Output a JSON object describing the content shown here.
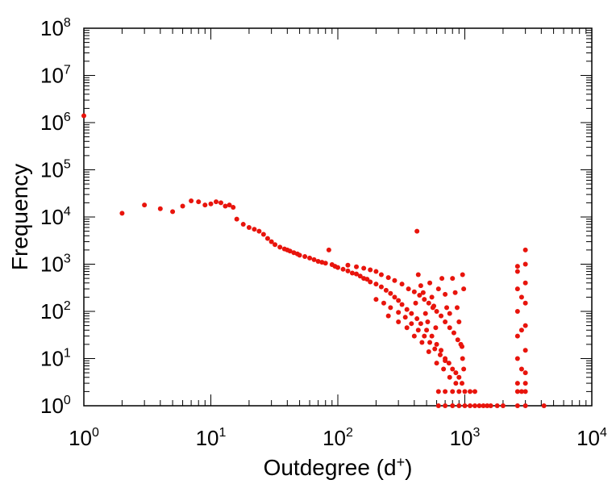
{
  "chart_data": {
    "type": "scatter",
    "title": "",
    "xlabel": "Outdegree (d",
    "xlabel_sup": "+",
    "xlabel_close": ")",
    "ylabel": "Frequency",
    "xscale": "log",
    "yscale": "log",
    "xlim": [
      1,
      10000
    ],
    "ylim": [
      1,
      100000000
    ],
    "x_ticks": [
      {
        "base": "10",
        "exp": "0"
      },
      {
        "base": "10",
        "exp": "1"
      },
      {
        "base": "10",
        "exp": "2"
      },
      {
        "base": "10",
        "exp": "3"
      },
      {
        "base": "10",
        "exp": "4"
      }
    ],
    "y_ticks": [
      {
        "base": "10",
        "exp": "0"
      },
      {
        "base": "10",
        "exp": "1"
      },
      {
        "base": "10",
        "exp": "2"
      },
      {
        "base": "10",
        "exp": "3"
      },
      {
        "base": "10",
        "exp": "4"
      },
      {
        "base": "10",
        "exp": "5"
      },
      {
        "base": "10",
        "exp": "6"
      },
      {
        "base": "10",
        "exp": "7"
      },
      {
        "base": "10",
        "exp": "8"
      }
    ],
    "marker_color": "#e8140c",
    "grid": false,
    "points": [
      [
        1,
        1400000
      ],
      [
        2,
        12000
      ],
      [
        3,
        18000
      ],
      [
        4,
        15000
      ],
      [
        5,
        13000
      ],
      [
        6,
        17000
      ],
      [
        7,
        22000
      ],
      [
        8,
        21000
      ],
      [
        9,
        18000
      ],
      [
        10,
        19000
      ],
      [
        11,
        21000
      ],
      [
        12,
        20000
      ],
      [
        13,
        17000
      ],
      [
        14,
        18000
      ],
      [
        15,
        16000
      ],
      [
        16,
        9000
      ],
      [
        18,
        7000
      ],
      [
        20,
        6000
      ],
      [
        22,
        5500
      ],
      [
        24,
        5000
      ],
      [
        26,
        4300
      ],
      [
        28,
        3500
      ],
      [
        30,
        3000
      ],
      [
        32,
        2600
      ],
      [
        35,
        2300
      ],
      [
        38,
        2100
      ],
      [
        40,
        2000
      ],
      [
        42,
        1900
      ],
      [
        45,
        1750
      ],
      [
        48,
        1650
      ],
      [
        50,
        1550
      ],
      [
        55,
        1450
      ],
      [
        60,
        1350
      ],
      [
        65,
        1250
      ],
      [
        70,
        1150
      ],
      [
        75,
        1100
      ],
      [
        80,
        1050
      ],
      [
        85,
        2000
      ],
      [
        90,
        980
      ],
      [
        95,
        900
      ],
      [
        100,
        850
      ],
      [
        110,
        780
      ],
      [
        120,
        720
      ],
      [
        130,
        650
      ],
      [
        140,
        620
      ],
      [
        150,
        560
      ],
      [
        160,
        500
      ],
      [
        170,
        480
      ],
      [
        180,
        420
      ],
      [
        200,
        380
      ],
      [
        220,
        330
      ],
      [
        240,
        280
      ],
      [
        260,
        240
      ],
      [
        280,
        200
      ],
      [
        300,
        170
      ],
      [
        320,
        140
      ],
      [
        350,
        110
      ],
      [
        380,
        90
      ],
      [
        420,
        5000
      ],
      [
        420,
        70
      ],
      [
        450,
        55
      ],
      [
        500,
        40
      ],
      [
        550,
        30
      ],
      [
        600,
        20
      ],
      [
        650,
        15
      ],
      [
        700,
        10
      ],
      [
        750,
        8
      ],
      [
        800,
        6
      ],
      [
        850,
        5
      ],
      [
        900,
        4
      ],
      [
        950,
        3
      ],
      [
        120,
        950
      ],
      [
        140,
        880
      ],
      [
        160,
        820
      ],
      [
        180,
        760
      ],
      [
        200,
        700
      ],
      [
        220,
        600
      ],
      [
        250,
        520
      ],
      [
        280,
        450
      ],
      [
        320,
        380
      ],
      [
        360,
        300
      ],
      [
        400,
        260
      ],
      [
        440,
        220
      ],
      [
        480,
        180
      ],
      [
        520,
        150
      ],
      [
        560,
        120
      ],
      [
        600,
        100
      ],
      [
        650,
        80
      ],
      [
        700,
        60
      ],
      [
        760,
        45
      ],
      [
        820,
        35
      ],
      [
        880,
        25
      ],
      [
        950,
        18
      ],
      [
        200,
        180
      ],
      [
        230,
        150
      ],
      [
        260,
        120
      ],
      [
        300,
        95
      ],
      [
        340,
        75
      ],
      [
        380,
        55
      ],
      [
        430,
        40
      ],
      [
        480,
        30
      ],
      [
        530,
        22
      ],
      [
        580,
        16
      ],
      [
        640,
        12
      ],
      [
        700,
        9
      ],
      [
        250,
        80
      ],
      [
        300,
        60
      ],
      [
        350,
        45
      ],
      [
        400,
        30
      ],
      [
        460,
        22
      ],
      [
        520,
        14
      ],
      [
        600,
        8
      ],
      [
        680,
        6
      ],
      [
        760,
        4
      ],
      [
        850,
        3
      ],
      [
        410,
        150
      ],
      [
        430,
        600
      ],
      [
        450,
        350
      ],
      [
        470,
        250
      ],
      [
        490,
        90
      ],
      [
        510,
        60
      ],
      [
        530,
        400
      ],
      [
        550,
        200
      ],
      [
        570,
        130
      ],
      [
        590,
        45
      ],
      [
        620,
        300
      ],
      [
        660,
        500
      ],
      [
        700,
        230
      ],
      [
        720,
        120
      ],
      [
        760,
        90
      ],
      [
        800,
        500
      ],
      [
        840,
        250
      ],
      [
        870,
        120
      ],
      [
        900,
        60
      ],
      [
        930,
        20
      ],
      [
        960,
        10
      ],
      [
        980,
        6
      ],
      [
        980,
        300
      ],
      [
        960,
        600
      ],
      [
        620,
        2
      ],
      [
        700,
        2
      ],
      [
        800,
        2
      ],
      [
        900,
        2
      ],
      [
        1000,
        2
      ],
      [
        1100,
        2
      ],
      [
        1200,
        2
      ],
      [
        620,
        1
      ],
      [
        700,
        1
      ],
      [
        800,
        1
      ],
      [
        900,
        1
      ],
      [
        1000,
        1
      ],
      [
        1100,
        1
      ],
      [
        1200,
        1
      ],
      [
        1300,
        1
      ],
      [
        1400,
        1
      ],
      [
        1500,
        1
      ],
      [
        1600,
        1
      ],
      [
        1800,
        1
      ],
      [
        2000,
        1
      ],
      [
        2600,
        1
      ],
      [
        3000,
        1
      ],
      [
        4200,
        1
      ],
      [
        2600,
        900
      ],
      [
        2600,
        700
      ],
      [
        2600,
        300
      ],
      [
        2600,
        100
      ],
      [
        2600,
        30
      ],
      [
        2600,
        10
      ],
      [
        2600,
        3
      ],
      [
        2600,
        2
      ],
      [
        2800,
        200
      ],
      [
        2800,
        40
      ],
      [
        2800,
        6
      ],
      [
        2800,
        2
      ],
      [
        3000,
        2000
      ],
      [
        3000,
        1000
      ],
      [
        3000,
        400
      ],
      [
        3000,
        150
      ],
      [
        3000,
        50
      ],
      [
        3000,
        15
      ],
      [
        3000,
        5
      ],
      [
        3000,
        3
      ],
      [
        3000,
        2
      ]
    ]
  }
}
